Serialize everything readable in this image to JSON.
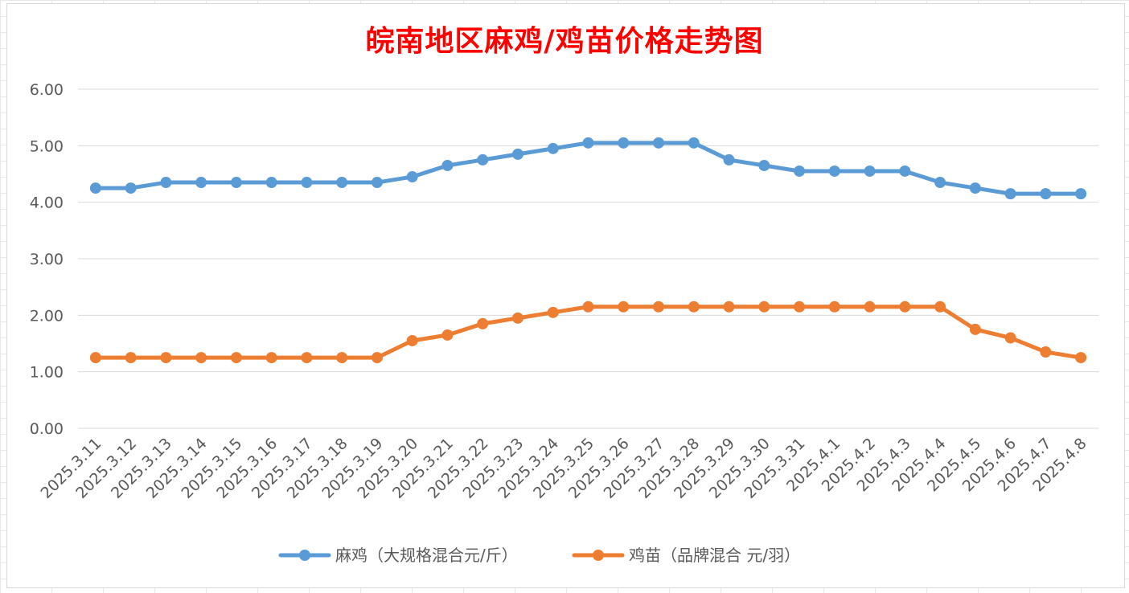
{
  "chart_data": {
    "type": "line",
    "title": "皖南地区麻鸡/鸡苗价格走势图",
    "categories": [
      "2025.3.11",
      "2025.3.12",
      "2025.3.13",
      "2025.3.14",
      "2025.3.15",
      "2025.3.16",
      "2025.3.17",
      "2025.3.18",
      "2025.3.19",
      "2025.3.20",
      "2025.3.21",
      "2025.3.22",
      "2025.3.23",
      "2025.3.24",
      "2025.3.25",
      "2025.3.26",
      "2025.3.27",
      "2025.3.28",
      "2025.3.29",
      "2025.3.30",
      "2025.3.31",
      "2025.4.1",
      "2025.4.2",
      "2025.4.3",
      "2025.4.4",
      "2025.4.5",
      "2025.4.6",
      "2025.4.7",
      "2025.4.8"
    ],
    "series": [
      {
        "name": "麻鸡（大规格混合元/斤）",
        "color": "#5b9bd5",
        "values": [
          4.25,
          4.25,
          4.35,
          4.35,
          4.35,
          4.35,
          4.35,
          4.35,
          4.35,
          4.45,
          4.65,
          4.75,
          4.85,
          4.95,
          5.05,
          5.05,
          5.05,
          5.05,
          4.75,
          4.65,
          4.55,
          4.55,
          4.55,
          4.55,
          4.35,
          4.25,
          4.15,
          4.15,
          4.15
        ]
      },
      {
        "name": "鸡苗（品牌混合 元/羽）",
        "color": "#ed7d31",
        "values": [
          1.25,
          1.25,
          1.25,
          1.25,
          1.25,
          1.25,
          1.25,
          1.25,
          1.25,
          1.55,
          1.65,
          1.85,
          1.95,
          2.05,
          2.15,
          2.15,
          2.15,
          2.15,
          2.15,
          2.15,
          2.15,
          2.15,
          2.15,
          2.15,
          2.15,
          1.75,
          1.6,
          1.35,
          1.25
        ]
      }
    ],
    "yticks": [
      "0.00",
      "1.00",
      "2.00",
      "3.00",
      "4.00",
      "5.00",
      "6.00"
    ],
    "ylim": [
      0,
      6
    ],
    "grid": true,
    "legend_position": "bottom"
  }
}
